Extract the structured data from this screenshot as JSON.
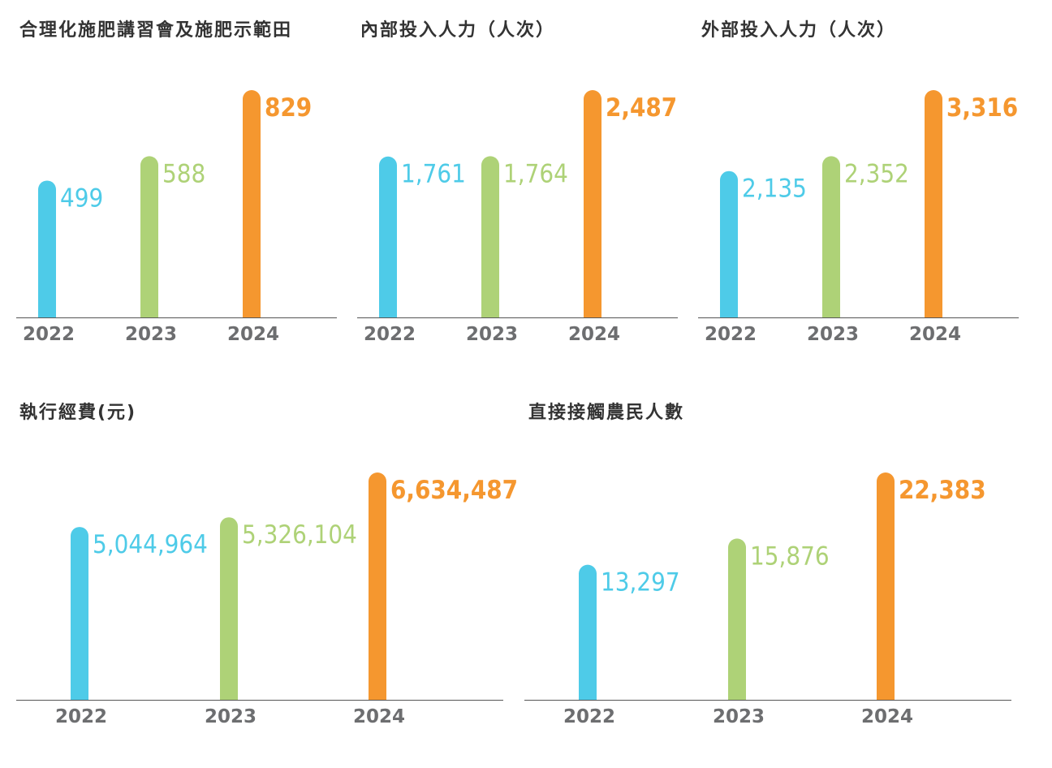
{
  "colors": {
    "2022": "#4ecbe8",
    "2023": "#aed277",
    "2024": "#f5972f",
    "title": "#333333",
    "axis_label": "#6d6e70"
  },
  "chart_data": [
    {
      "type": "bar",
      "title": "合理化施肥講習會及施肥示範田",
      "categories": [
        "2022",
        "2023",
        "2024"
      ],
      "values": [
        499,
        588,
        829
      ],
      "value_labels": [
        "499",
        "588",
        "829"
      ]
    },
    {
      "type": "bar",
      "title": "內部投入人力（人次）",
      "categories": [
        "2022",
        "2023",
        "2024"
      ],
      "values": [
        1761,
        1764,
        2487
      ],
      "value_labels": [
        "1,761",
        "1,764",
        "2,487"
      ]
    },
    {
      "type": "bar",
      "title": "外部投入人力（人次）",
      "categories": [
        "2022",
        "2023",
        "2024"
      ],
      "values": [
        2135,
        2352,
        3316
      ],
      "value_labels": [
        "2,135",
        "2,352",
        "3,316"
      ]
    },
    {
      "type": "bar",
      "title": "執行經費(元)",
      "categories": [
        "2022",
        "2023",
        "2024"
      ],
      "values": [
        5044964,
        5326104,
        6634487
      ],
      "value_labels": [
        "5,044,964",
        "5,326,104",
        "6,634,487"
      ]
    },
    {
      "type": "bar",
      "title": "直接接觸農民人數",
      "categories": [
        "2022",
        "2023",
        "2024"
      ],
      "values": [
        13297,
        15876,
        22383
      ],
      "value_labels": [
        "13,297",
        "15,876",
        "22,383"
      ]
    }
  ]
}
